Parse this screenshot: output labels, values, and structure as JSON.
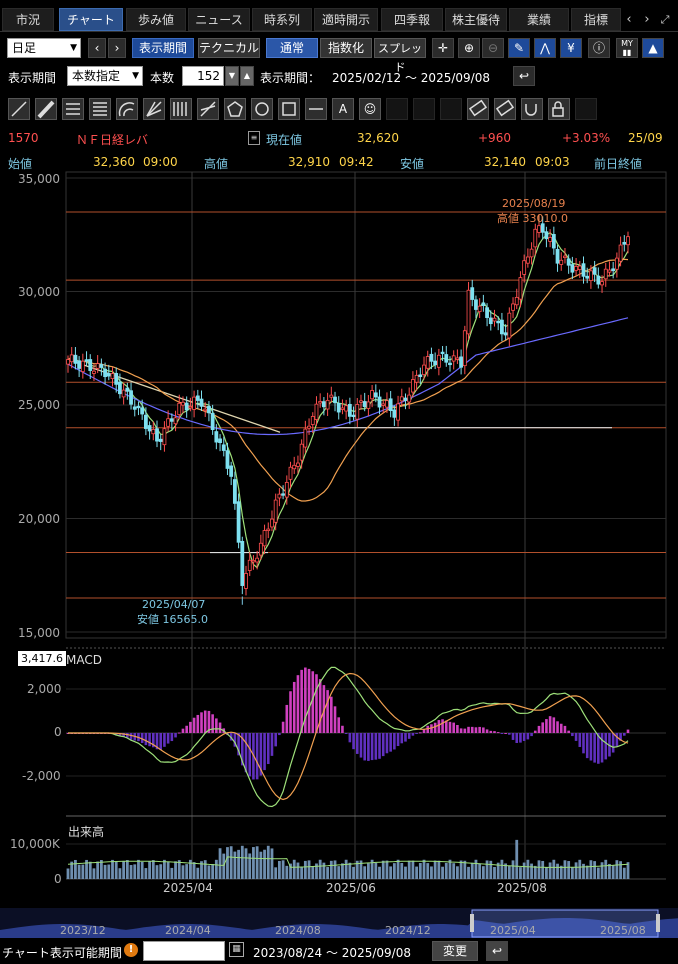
{
  "tabs": [
    {
      "label": "市況",
      "active": false
    },
    {
      "label": "チャート",
      "active": true
    },
    {
      "label": "歩み値",
      "active": false
    },
    {
      "label": "ニュース",
      "active": false
    },
    {
      "label": "時系列",
      "active": false
    },
    {
      "label": "適時開示",
      "active": false
    },
    {
      "label": "四季報",
      "active": false
    },
    {
      "label": "株主優待",
      "active": false
    },
    {
      "label": "業績",
      "active": false
    },
    {
      "label": "指標",
      "active": false
    }
  ],
  "toolbar1": {
    "period_select": "日足",
    "range_button": "表示期間",
    "technical_button": "テクニカル",
    "normal_button": "通常",
    "index_button": "指数化",
    "spread_button": "スプレッド",
    "my_icon_text": "MY"
  },
  "toolbar2": {
    "period_label": "表示期間",
    "count_mode": "本数指定",
    "count_label": "本数",
    "count_value": "152",
    "range_label": "表示期間：",
    "range_value": "2025/02/12 ～ 2025/09/08"
  },
  "quote": {
    "code": "1570",
    "name": "ＮＦ日経レバ",
    "current_label": "現在値",
    "current_value": "32,620",
    "change": "+960",
    "change_pct": "+3.03%",
    "date": "25/09",
    "open_label": "始値",
    "open_value": "32,360",
    "open_time": "09:00",
    "high_label": "高値",
    "high_value": "32,910",
    "high_time": "09:42",
    "low_label": "安値",
    "low_value": "32,140",
    "low_time": "09:03",
    "prev_label": "前日終値"
  },
  "price_axis": [
    "35,000",
    "30,000",
    "25,000",
    "20,000",
    "15,000"
  ],
  "annotations": {
    "high_date": "2025/08/19",
    "high_text": "高値 33010.0",
    "low_date": "2025/04/07",
    "low_text": "安値 16565.0",
    "cursor_value": "3,417.6"
  },
  "macd": {
    "title": "MACD",
    "axis": [
      "2,000",
      "0",
      "-2,000"
    ]
  },
  "volume": {
    "title": "出来高",
    "axis": [
      "10,000K",
      "0"
    ]
  },
  "x_axis": [
    "2025/04",
    "2025/06",
    "2025/08"
  ],
  "navigator_axis": [
    "2023/12",
    "2024/04",
    "2024/08",
    "2024/12",
    "2025/04",
    "2025/08"
  ],
  "bottom": {
    "label": "チャート表示可能期間",
    "input_value": "",
    "range": "2023/08/24 ～ 2025/09/08",
    "change_button": "変更"
  },
  "chart_data": {
    "type": "candlestick",
    "ylim": [
      15000,
      35000
    ],
    "candles_sampled": [
      {
        "date": "2025/02/12",
        "open": 26800,
        "close": 27100,
        "high": 27300,
        "low": 26600
      },
      {
        "date": "2025/03/03",
        "open": 25600,
        "close": 25100,
        "high": 25800,
        "low": 24900
      },
      {
        "date": "2025/03/18",
        "open": 24800,
        "close": 23400,
        "high": 24900,
        "low": 22900
      },
      {
        "date": "2025/03/31",
        "open": 24300,
        "close": 23600,
        "high": 25000,
        "low": 23300
      },
      {
        "date": "2025/04/07",
        "open": 17500,
        "close": 17000,
        "high": 17800,
        "low": 16565
      },
      {
        "date": "2025/04/10",
        "open": 20200,
        "close": 21600,
        "high": 21900,
        "low": 19900
      },
      {
        "date": "2025/05/13",
        "open": 25200,
        "close": 25600,
        "high": 25800,
        "low": 25000
      },
      {
        "date": "2025/06/20",
        "open": 24700,
        "close": 25400,
        "high": 25600,
        "low": 24600
      },
      {
        "date": "2025/07/24",
        "open": 28500,
        "close": 29700,
        "high": 30000,
        "low": 28400
      },
      {
        "date": "2025/08/19",
        "open": 32600,
        "close": 32800,
        "high": 33010,
        "low": 32400
      },
      {
        "date": "2025/09/08",
        "open": 32360,
        "close": 32620,
        "high": 32910,
        "low": 32140
      }
    ],
    "horizontal_lines": [
      33500,
      30500,
      26000,
      24000,
      18500,
      16500
    ]
  }
}
